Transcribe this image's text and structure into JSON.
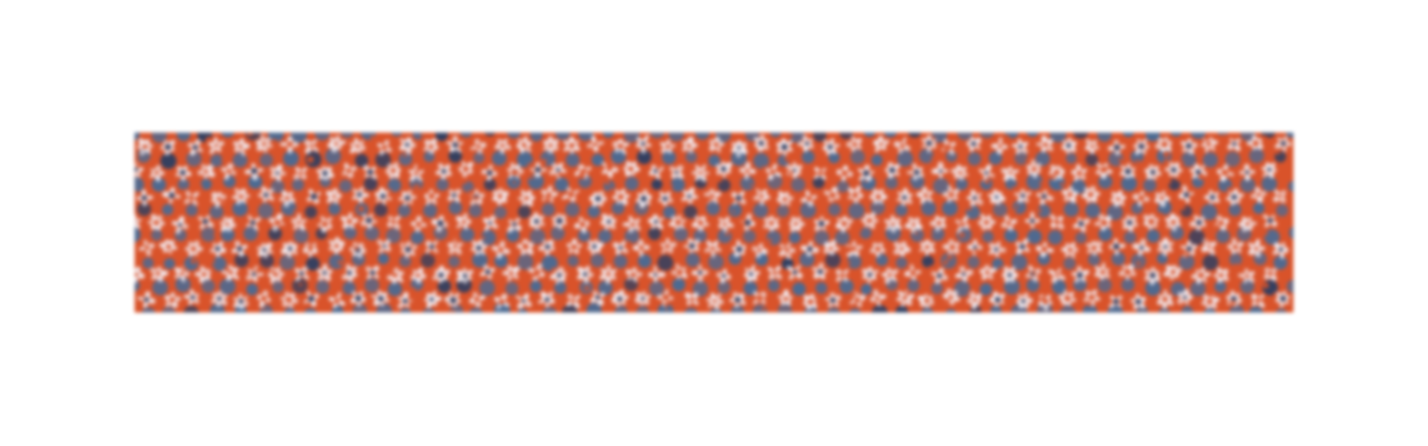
{
  "image": {
    "kind": "textured-pattern-strip",
    "colors": {
      "background": "#ffffff",
      "base": "#d9532a",
      "blue": "#4a6a93",
      "light": "#f2ebf0",
      "dark_accent": "#2e3f62"
    },
    "pattern": {
      "columns": 49,
      "rows": 7,
      "seed": 73
    }
  }
}
